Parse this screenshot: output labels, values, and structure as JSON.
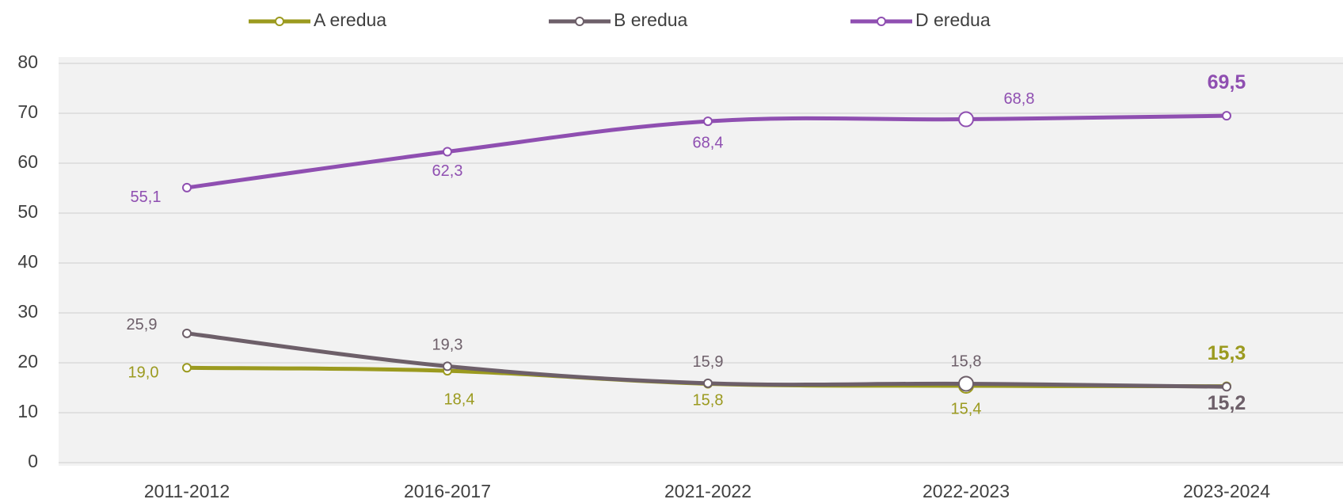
{
  "chart_data": {
    "type": "line",
    "categories": [
      "2011-2012",
      "2016-2017",
      "2021-2022",
      "2022-2023",
      "2023-2024"
    ],
    "series": [
      {
        "name": "A eredua",
        "color": "#9b9a1f",
        "values": [
          19.0,
          18.4,
          15.8,
          15.4,
          15.3
        ],
        "value_labels": [
          "19,0",
          "18,4",
          "15,8",
          "15,4",
          "15,3"
        ]
      },
      {
        "name": "B eredua",
        "color": "#6d5f69",
        "values": [
          25.9,
          19.3,
          15.9,
          15.8,
          15.2
        ],
        "value_labels": [
          "25,9",
          "19,3",
          "15,9",
          "15,8",
          "15,2"
        ]
      },
      {
        "name": "D eredua",
        "color": "#8f4fb1",
        "values": [
          55.1,
          62.3,
          68.4,
          68.8,
          69.5
        ],
        "value_labels": [
          "55,1",
          "62,3",
          "68,4",
          "68,8",
          "69,5"
        ]
      }
    ],
    "ylim": [
      0,
      80
    ],
    "yticks": [
      0,
      10,
      20,
      30,
      40,
      50,
      60,
      70,
      80
    ],
    "grid": true,
    "legend": "top"
  }
}
